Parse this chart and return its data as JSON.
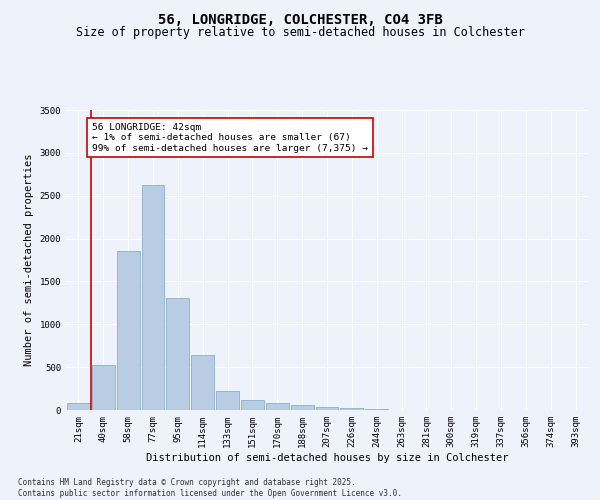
{
  "title": "56, LONGRIDGE, COLCHESTER, CO4 3FB",
  "subtitle": "Size of property relative to semi-detached houses in Colchester",
  "xlabel": "Distribution of semi-detached houses by size in Colchester",
  "ylabel": "Number of semi-detached properties",
  "categories": [
    "21sqm",
    "40sqm",
    "58sqm",
    "77sqm",
    "95sqm",
    "114sqm",
    "133sqm",
    "151sqm",
    "170sqm",
    "188sqm",
    "207sqm",
    "226sqm",
    "244sqm",
    "263sqm",
    "281sqm",
    "300sqm",
    "319sqm",
    "337sqm",
    "356sqm",
    "374sqm",
    "393sqm"
  ],
  "values": [
    80,
    530,
    1850,
    2630,
    1310,
    640,
    220,
    120,
    80,
    55,
    35,
    20,
    10,
    5,
    5,
    2,
    1,
    1,
    0,
    0,
    0
  ],
  "bar_color": "#b8cce4",
  "bar_edge_color": "#7da6c8",
  "vline_color": "#cc0000",
  "annotation_text": "56 LONGRIDGE: 42sqm\n← 1% of semi-detached houses are smaller (67)\n99% of semi-detached houses are larger (7,375) →",
  "annotation_box_color": "#ffffff",
  "annotation_box_edge": "#cc0000",
  "ylim": [
    0,
    3500
  ],
  "yticks": [
    0,
    500,
    1000,
    1500,
    2000,
    2500,
    3000,
    3500
  ],
  "background_color": "#eef2fb",
  "grid_color": "#ffffff",
  "footer_line1": "Contains HM Land Registry data © Crown copyright and database right 2025.",
  "footer_line2": "Contains public sector information licensed under the Open Government Licence v3.0.",
  "title_fontsize": 10,
  "subtitle_fontsize": 8.5,
  "tick_fontsize": 6.5,
  "label_fontsize": 7.5,
  "ylabel_fontsize": 7.5,
  "footer_fontsize": 5.5
}
